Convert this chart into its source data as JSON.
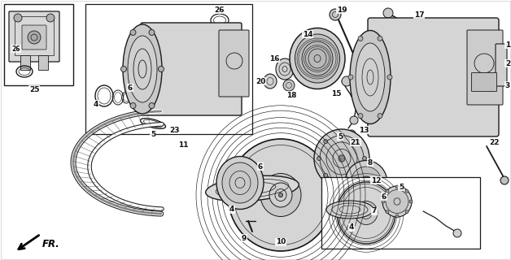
{
  "bg_color": "#ffffff",
  "fig_width": 6.28,
  "fig_height": 3.2,
  "dpi": 100,
  "line_color": "#1a1a1a",
  "text_color": "#111111",
  "font_size": 6.5,
  "fr_label": "FR."
}
